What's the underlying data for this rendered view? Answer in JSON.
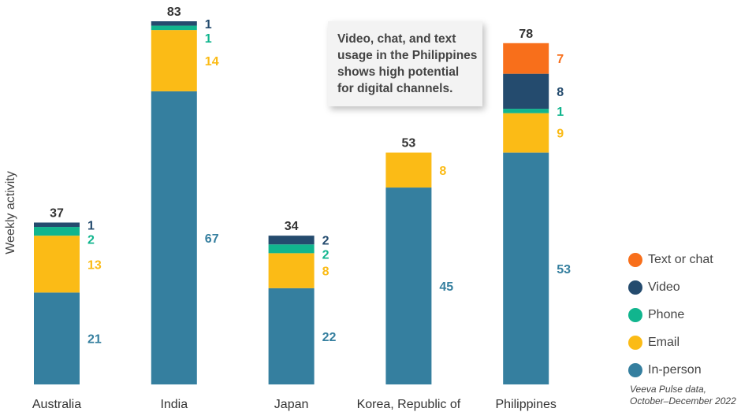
{
  "chart_data": {
    "type": "bar",
    "stacked": true,
    "ylabel": "Weekly activity",
    "ylim": [
      0,
      83
    ],
    "grid": false,
    "legend_placement": "bottom-right",
    "categories": [
      "Australia",
      "India",
      "Japan",
      "Korea, Republic of",
      "Philippines"
    ],
    "totals": [
      37,
      83,
      34,
      53,
      78
    ],
    "series": [
      {
        "name": "In-person",
        "color": "#357f9f",
        "values": [
          21,
          67,
          22,
          45,
          53
        ]
      },
      {
        "name": "Email",
        "color": "#fbbb16",
        "values": [
          13,
          14,
          8,
          8,
          9
        ]
      },
      {
        "name": "Phone",
        "color": "#11b58e",
        "values": [
          2,
          1,
          2,
          0,
          1
        ]
      },
      {
        "name": "Video",
        "color": "#244b6e",
        "values": [
          1,
          1,
          2,
          0,
          8
        ]
      },
      {
        "name": "Text or chat",
        "color": "#f86f1b",
        "values": [
          0,
          0,
          0,
          0,
          7
        ]
      }
    ],
    "legend_order": [
      "Text or chat",
      "Video",
      "Phone",
      "Email",
      "In-person"
    ],
    "annotation": "Video, chat, and text\nusage in the Philippines\nshows high potential\nfor digital channels.",
    "source": "Veeva Pulse data,\nOctober–December 2022"
  }
}
